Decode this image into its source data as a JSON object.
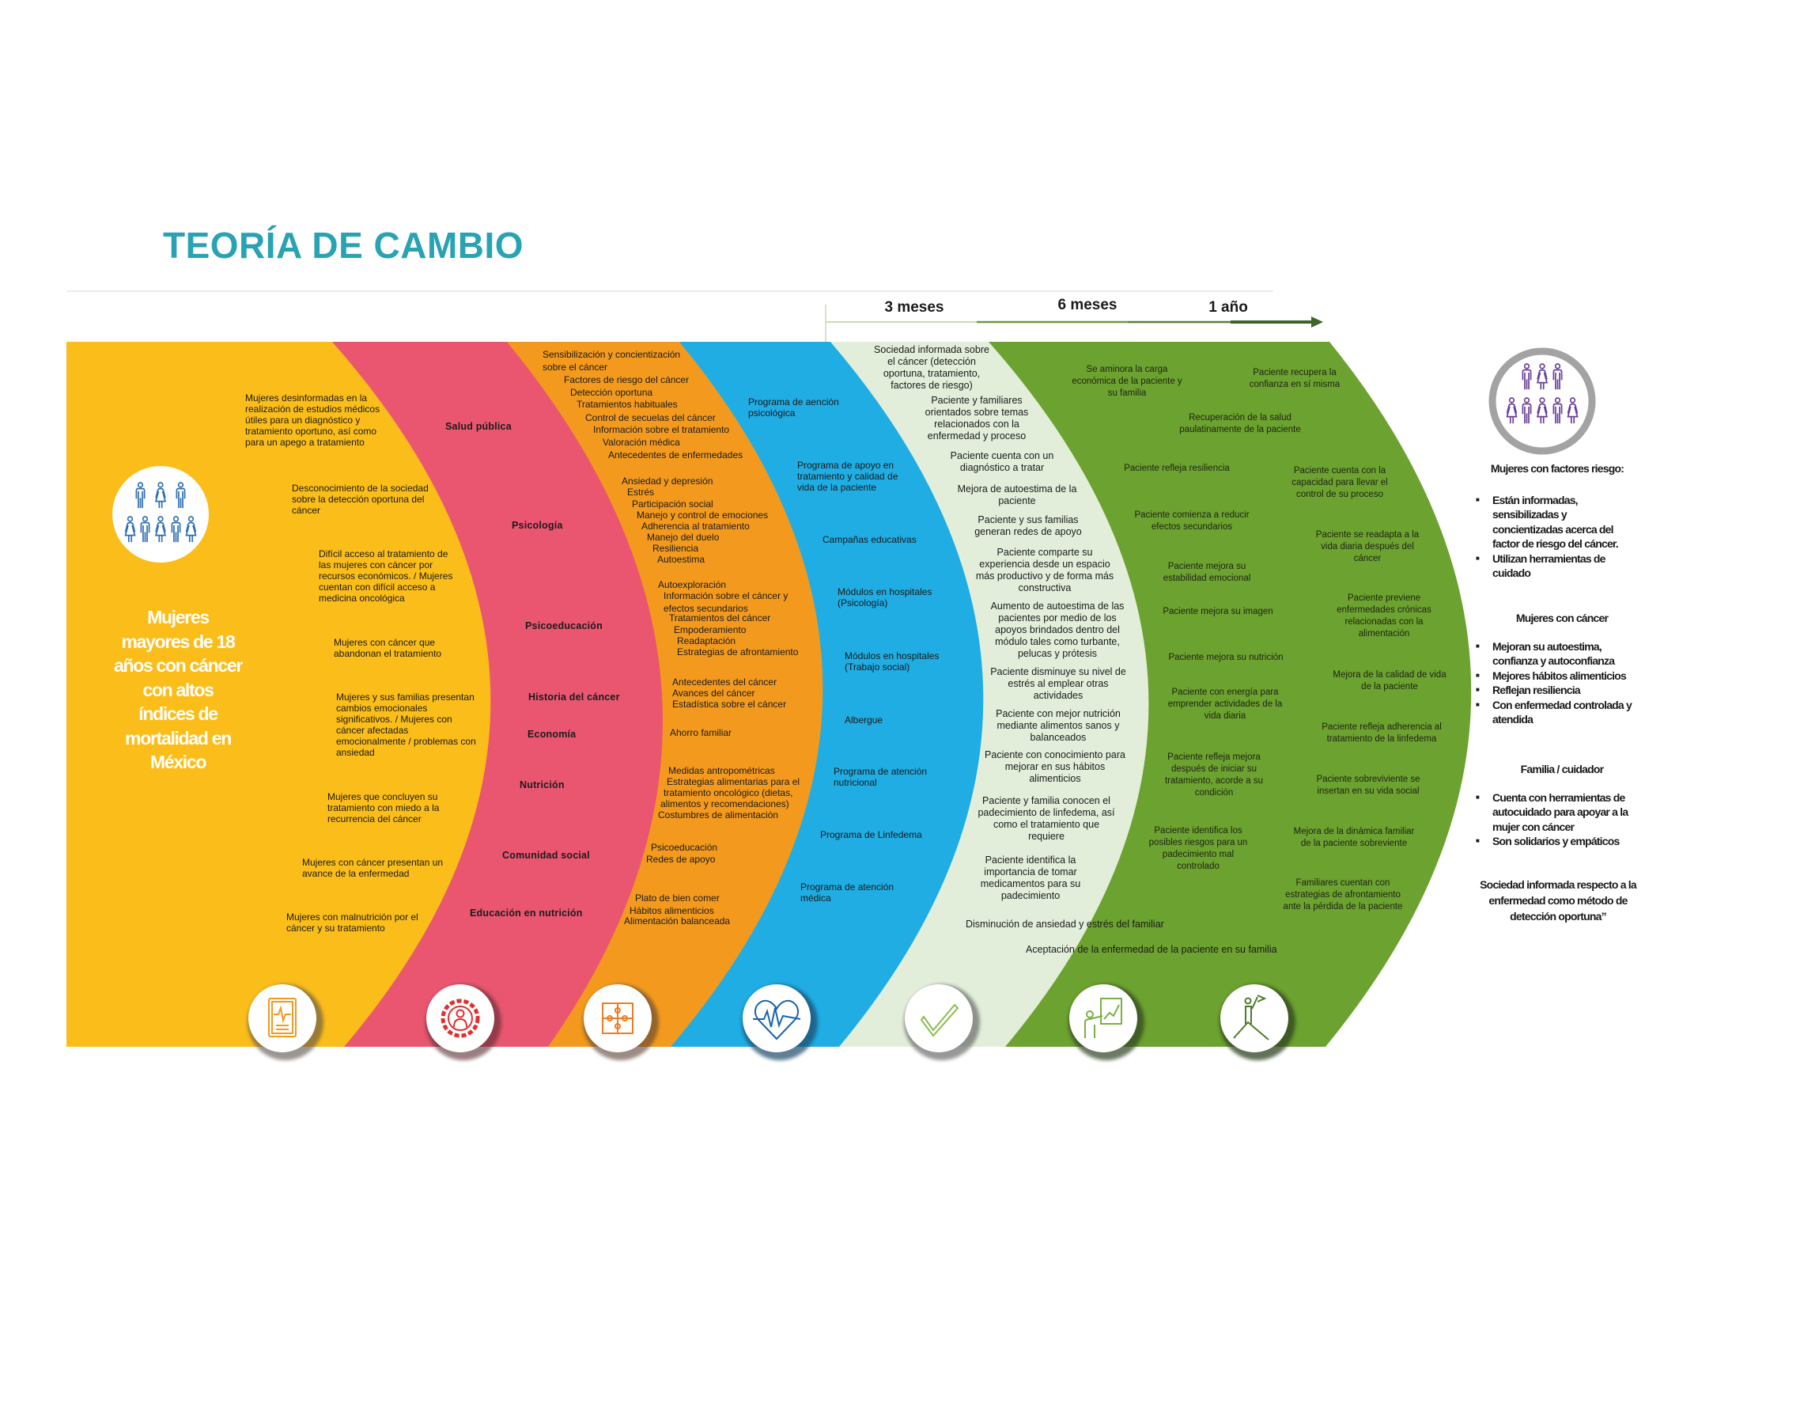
{
  "title": "TEORÍA DE CAMBIO",
  "colors": {
    "title": "#29a3b4",
    "problems": "#fbbd19",
    "strategies": "#ea5670",
    "activities": "#f39a1e",
    "programs": "#1fade3",
    "short_term": "#e2eeda",
    "long_term": "#6ca22f",
    "population_icon": "#2f6fb4",
    "impact_icon": "#6b3e99"
  },
  "timeline": {
    "labels": [
      "3 meses",
      "6 meses",
      "1 año"
    ]
  },
  "population": {
    "icon": "people-group-icon",
    "text": "Mujeres\nmayores de 18\naños con cáncer\ncon altos\níndices de\nmortalidad en\nMéxico"
  },
  "problems": [
    "Mujeres desinformadas en la\nrealización de estudios médicos\nútiles para un diagnóstico y\ntratamiento oportuno, así como\npara un apego a tratamiento",
    "Desconocimiento de la sociedad\nsobre la detección oportuna del\ncáncer",
    "Difícil acceso al tratamiento de\nlas mujeres con cáncer por\nrecursos económicos. / Mujeres\ncuentan con difícil acceso a\nmedicina oncológica",
    "Mujeres con cáncer que\nabandonan el tratamiento",
    "Mujeres y sus familias presentan\ncambios emocionales\nsignificativos. / Mujeres con\ncáncer afectadas\nemocionalmente / problemas con\nansiedad",
    "Mujeres que concluyen su\ntratamiento con miedo a la\nrecurrencia del cáncer",
    "Mujeres con cáncer presentan un\navance de la enfermedad",
    "Mujeres con malnutrición por el\ncáncer y su tratamiento"
  ],
  "strategies": [
    "Salud pública",
    "Psicología",
    "Psicoeducación",
    "Historia del cáncer",
    "Economía",
    "Nutrición",
    "Comunidad social",
    "Educación en nutrición"
  ],
  "activities": [
    "Sensibilización y concientización\nsobre el cáncer",
    "Factores de riesgo del cáncer",
    "Detección oportuna",
    "Tratamientos habituales",
    "Control de secuelas del cáncer",
    "Información sobre el tratamiento",
    "Valoración médica",
    "Antecedentes de enfermedades",
    "Ansiedad y depresión",
    "Estrés",
    "Participación social",
    "Manejo y control de emociones",
    "Adherencia al tratamiento",
    "Manejo del duelo",
    "Resiliencia",
    "Autoestima",
    "Autoexploración",
    "Información sobre el cáncer y\nefectos secundarios",
    "Tratamientos del cáncer",
    "Empoderamiento",
    "Readaptación",
    "Estrategias de afrontamiento",
    "Antecedentes del cáncer",
    "Avances del cáncer",
    "Estadística sobre el cáncer",
    "Ahorro familiar",
    "Medidas antropométricas",
    "Estrategias alimentarias para el",
    "tratamiento oncológico (dietas,",
    "alimentos y recomendaciones)",
    "Costumbres de alimentación",
    "Psicoeducación",
    "Redes de apoyo",
    "Plato de bien comer",
    "Hábitos alimenticios",
    "Alimentación balanceada"
  ],
  "programs": [
    "Programa de aención\npsicológica",
    "Programa de apoyo en\ntratamiento y calidad de\nvida de la paciente",
    "Campañas educativas",
    "Módulos en hospitales\n(Psicología)",
    "Módulos en hospitales\n(Trabajo social)",
    "Albergue",
    "Programa de atención\nnutricional",
    "Programa de Linfedema",
    "Programa de atención\nmédica"
  ],
  "short_term_outcomes": [
    "Sociedad informada sobre\nel cáncer (detección\noportuna, tratamiento,\nfactores de riesgo)",
    "Paciente y familiares\norientados sobre temas\nrelacionados con la\nenfermedad y proceso",
    "Paciente cuenta con un\ndiagnóstico a tratar",
    "Mejora de autoestima de la\npaciente",
    "Paciente y sus familias\ngeneran redes de apoyo",
    "Paciente comparte su\nexperiencia desde un espacio\nmás productivo y de forma más\nconstructiva",
    "Aumento de autoestima de las\npacientes por medio de los\napoyos brindados dentro del\nmódulo tales como turbante,\npelucas y prótesis",
    "Paciente disminuye su nivel de\nestrés al emplear otras\nactividades",
    "Paciente con mejor nutrición\nmediante alimentos sanos y\nbalanceados",
    "Paciente con conocimiento para\nmejorar en sus hábitos\nalimenticios",
    "Paciente y familia conocen el\npadecimiento de linfedema, así\ncomo el tratamiento que\nrequiere",
    "Paciente identifica la\nimportancia de tomar\nmedicamentos para su\npadecimiento",
    "Disminución de ansiedad y estrés del familiar",
    "Aceptación de la enfermedad de la paciente en su familia"
  ],
  "long_term_outcomes": [
    "Se aminora la carga\neconómica de la paciente y\nsu familia",
    "Paciente recupera la\nconfianza en sí misma",
    "Recuperación de la salud\npaulatinamente de la paciente",
    "Paciente refleja resiliencia",
    "Paciente cuenta con la\ncapacidad para llevar el\ncontrol de su proceso",
    "Paciente comienza a reducir\nefectos secundarios",
    "Paciente se readapta a la\nvida diaria después del\ncáncer",
    "Paciente mejora su\nestabilidad emocional",
    "Paciente previene\nenfermedades crónicas\nrelacionadas con la\nalimentación",
    "Paciente mejora su imagen",
    "Paciente mejora su nutrición",
    "Mejora de la calidad de vida\nde la paciente",
    "Paciente con energía para\nemprender actividades de la\nvida diaria",
    "Paciente refleja adherencia al\ntratamiento de la linfedema",
    "Paciente refleja mejora\ndespués de iniciar su\ntratamiento, acorde a su\ncondición",
    "Paciente sobreviviente se\ninsertan en su vida social",
    "Paciente identifica los\nposibles riesgos para un\npadecimiento mal\ncontrolado",
    "Mejora de la dinámica familiar\nde la paciente sobreviente",
    "Familiares cuentan con\nestrategias de afrontamiento\nante la pérdida de la paciente"
  ],
  "impact": {
    "icon": "people-group-icon",
    "groups": [
      {
        "heading": "Mujeres con factores riesgo:",
        "bullets": [
          "Están informadas,\nsensibilizadas y\nconcientizadas acerca del\nfactor de riesgo del cáncer.",
          "Utilizan herramientas de\ncuidado"
        ]
      },
      {
        "heading": "Mujeres con cáncer",
        "bullets": [
          "Mejoran su autoestima,\nconfianza y autoconfianza",
          "Mejores hábitos alimenticios",
          "Reflejan resiliencia",
          "Con enfermedad controlada y\natendida"
        ]
      },
      {
        "heading": "Familia / cuidador",
        "bullets": [
          "Cuenta con herramientas de\nautocuidado para apoyar a la\nmujer con cáncer",
          "Son solidarios y empáticos"
        ]
      }
    ],
    "statement": "Sociedad informada respecto a la\nenfermedad como método de\ndetección oportuna”"
  },
  "bottom_icons": [
    "clipboard-pulse-icon",
    "gear-person-icon",
    "puzzle-icon",
    "heart-pulse-icon",
    "checkmark-icon",
    "person-chart-icon",
    "person-flag-mountain-icon"
  ]
}
